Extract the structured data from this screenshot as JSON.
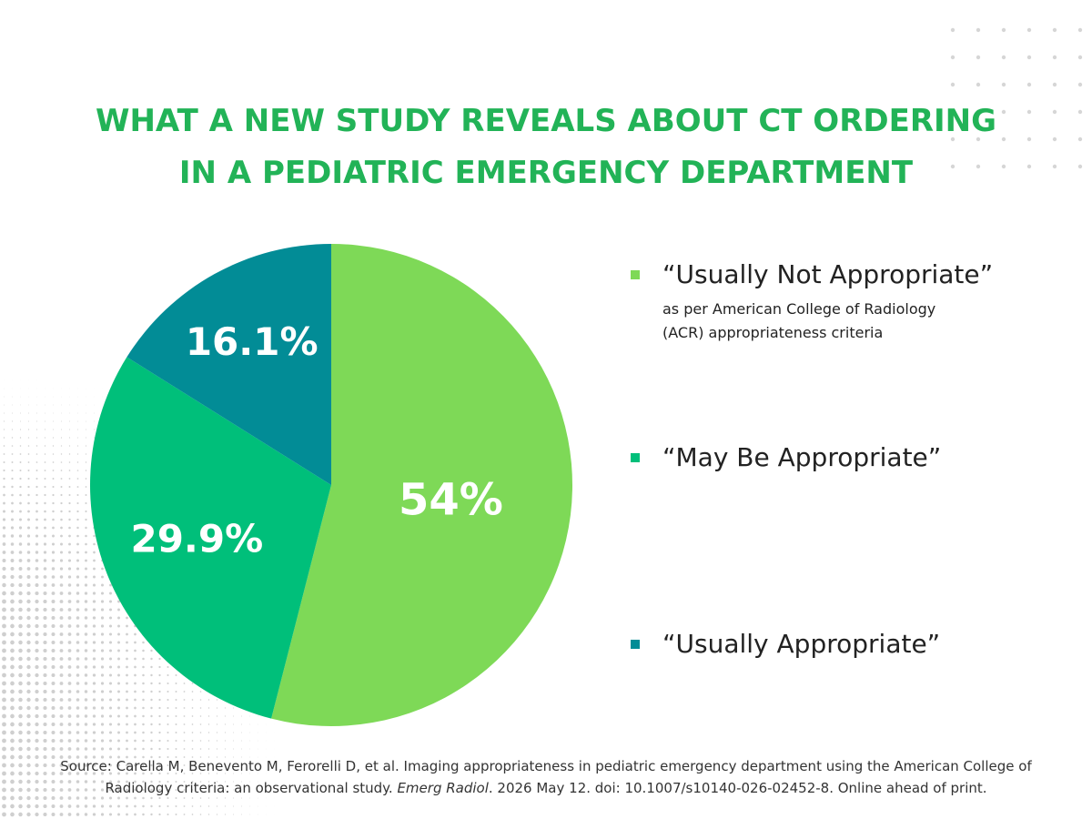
{
  "title": {
    "line1": "WHAT A NEW STUDY REVEALS ABOUT CT ORDERING",
    "line2": "IN A PEDIATRIC EMERGENCY DEPARTMENT"
  },
  "colors": {
    "title": "#22b357",
    "usually_not_appropriate": "#7ed957",
    "may_be_appropriate": "#00bf7a",
    "usually_appropriate": "#028c96"
  },
  "chart_data": {
    "type": "pie",
    "slices": [
      {
        "label": "“Usually Not Appropriate”",
        "value": 54,
        "display": "54%",
        "color": "#7ed957"
      },
      {
        "label": "“May Be Appropriate”",
        "value": 29.9,
        "display": "29.9%",
        "color": "#00bf7a"
      },
      {
        "label": "“Usually Appropriate”",
        "value": 16.1,
        "display": "16.1%",
        "color": "#028c96"
      }
    ],
    "legend_placement": "right"
  },
  "legend": {
    "note_line1": "as per American College of Radiology",
    "note_line2": "(ACR) appropriateness criteria"
  },
  "source": {
    "part1": "Source: Carella M, Benevento M, Ferorelli D, et al. Imaging appropriateness in pediatric emergency department using the American College of",
    "part2": "Radiology criteria: an observational study. ",
    "journal": "Emerg Radiol",
    "part3": ". 2026 May 12. doi: 10.1007/s10140-026-02452-8. Online ahead of print."
  }
}
